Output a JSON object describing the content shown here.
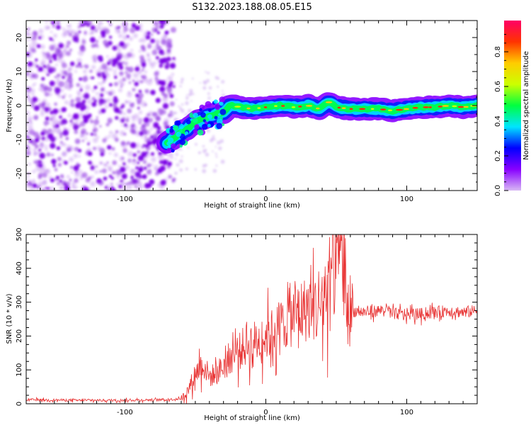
{
  "figure_title": "S132.2023.188.08.05.E15",
  "colors": {
    "snr_line": "#e83232",
    "noise_speckle": "#8a2be2",
    "axis": "#000000"
  },
  "colormap_stops": [
    "#d8b8f4",
    "#8800ff",
    "#0000ff",
    "#00e5ff",
    "#00ff40",
    "#ccff00",
    "#ffcc00",
    "#ff3300",
    "#ff0066"
  ],
  "chart_data": [
    {
      "type": "heatmap",
      "title": "",
      "xlabel": "Height of straight line (km)",
      "ylabel": "Frequency (Hz)",
      "xlim": [
        -170,
        150
      ],
      "ylim": [
        -25,
        25
      ],
      "xticks": [
        -100,
        0,
        100
      ],
      "yticks": [
        -20,
        -10,
        0,
        10,
        20
      ],
      "colorbar": {
        "label": "Normalized spectral amplitude",
        "range": [
          0,
          1
        ],
        "ticks": [
          "0.0",
          "0.2",
          "0.4",
          "0.6",
          "0.8"
        ]
      },
      "ridge": {
        "x": [
          -70,
          -60,
          -50,
          -40,
          -30,
          -25,
          -10,
          0,
          10,
          20,
          30,
          38,
          45,
          50,
          60,
          70,
          80,
          90,
          100,
          110,
          120,
          130,
          140,
          150
        ],
        "frequency": [
          -11,
          -8,
          -5,
          -3,
          -2,
          0,
          -1,
          -0.5,
          0,
          -0.5,
          0,
          -1,
          1,
          -0.5,
          -1,
          -1,
          -1,
          -1.5,
          -1,
          -0.5,
          -0.5,
          0,
          -0.5,
          0
        ]
      },
      "noise_region_x": [
        -170,
        -65
      ]
    },
    {
      "type": "line",
      "title": "",
      "xlabel": "Height of straight line (km)",
      "ylabel": "SNR (10 * v/v)",
      "xlim": [
        -170,
        150
      ],
      "ylim": [
        0,
        500
      ],
      "xticks": [
        -100,
        0,
        100
      ],
      "yticks": [
        0,
        100,
        200,
        300,
        400,
        500
      ],
      "series": [
        {
          "x": [
            -170,
            -150,
            -130,
            -110,
            -90,
            -70,
            -60,
            -55,
            -50,
            -45,
            -40,
            -35,
            -30,
            -25,
            -20,
            -15,
            -10,
            -5,
            0,
            5,
            10,
            15,
            20,
            25,
            30,
            35,
            40,
            45,
            48,
            52,
            55,
            60,
            70,
            80,
            85,
            90,
            100,
            110,
            120,
            130,
            140,
            150
          ],
          "y": [
            12,
            11,
            10,
            10,
            11,
            12,
            15,
            40,
            90,
            120,
            80,
            90,
            110,
            140,
            150,
            170,
            180,
            185,
            200,
            210,
            230,
            250,
            260,
            275,
            280,
            285,
            300,
            350,
            420,
            460,
            380,
            275,
            270,
            275,
            280,
            265,
            265,
            265,
            270,
            275,
            270,
            275
          ]
        }
      ]
    }
  ]
}
